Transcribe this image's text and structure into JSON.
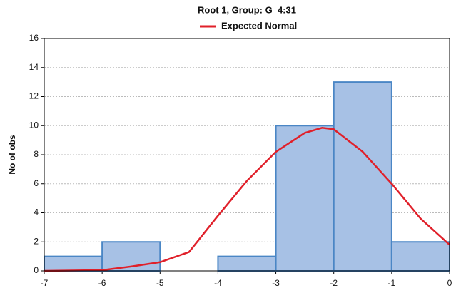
{
  "chart_data": {
    "type": "histogram",
    "title": "Root  1, Group: G_4:31",
    "y_label": "No of obs",
    "bins": [
      -7,
      -6,
      -5,
      -4,
      -3,
      -2,
      -1,
      0
    ],
    "counts": [
      1,
      2,
      0,
      1,
      10,
      13,
      2
    ],
    "color": "#a7c1e5",
    "edge_color": "#4a86c5",
    "curve": {
      "name": "Expected Normal",
      "color": "#e0202a",
      "x": [
        -7,
        -6,
        -5.5,
        -5,
        -4.5,
        -4,
        -3.5,
        -3,
        -2.5,
        -2.2,
        -2,
        -1.5,
        -1,
        -0.5,
        0
      ],
      "values": [
        0,
        0.05,
        0.3,
        0.6,
        1.3,
        3.8,
        6.2,
        8.2,
        9.5,
        9.85,
        9.75,
        8.2,
        6.0,
        3.6,
        1.8
      ]
    },
    "xlim": [
      -7,
      0
    ],
    "xticks": [
      -7,
      -6,
      -5,
      -4,
      -3,
      -2,
      -1,
      0
    ],
    "ylim": [
      0,
      16
    ],
    "yticks": [
      0,
      2,
      4,
      6,
      8,
      10,
      12,
      14,
      16
    ],
    "grid": true
  }
}
